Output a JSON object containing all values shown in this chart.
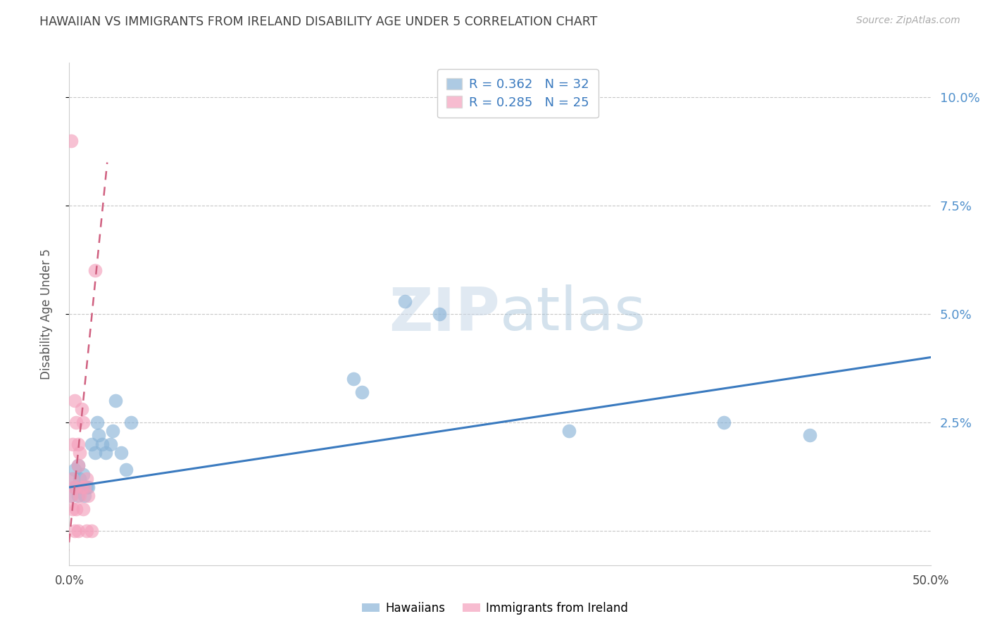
{
  "title": "HAWAIIAN VS IMMIGRANTS FROM IRELAND DISABILITY AGE UNDER 5 CORRELATION CHART",
  "source": "Source: ZipAtlas.com",
  "ylabel": "Disability Age Under 5",
  "watermark": "ZIPatlas",
  "xlim": [
    0.0,
    0.5
  ],
  "ylim": [
    -0.008,
    0.108
  ],
  "yticks": [
    0.0,
    0.025,
    0.05,
    0.075,
    0.1
  ],
  "ytick_labels": [
    "",
    "2.5%",
    "5.0%",
    "7.5%",
    "10.0%"
  ],
  "hawaiian_scatter_x": [
    0.001,
    0.002,
    0.003,
    0.003,
    0.004,
    0.005,
    0.005,
    0.006,
    0.007,
    0.008,
    0.009,
    0.01,
    0.011,
    0.013,
    0.015,
    0.016,
    0.017,
    0.019,
    0.021,
    0.024,
    0.025,
    0.027,
    0.03,
    0.033,
    0.036,
    0.195,
    0.215,
    0.38,
    0.43,
    0.165,
    0.17,
    0.29
  ],
  "hawaiian_scatter_y": [
    0.008,
    0.012,
    0.01,
    0.014,
    0.01,
    0.015,
    0.008,
    0.012,
    0.01,
    0.013,
    0.008,
    0.01,
    0.01,
    0.02,
    0.018,
    0.025,
    0.022,
    0.02,
    0.018,
    0.02,
    0.023,
    0.03,
    0.018,
    0.014,
    0.025,
    0.053,
    0.05,
    0.025,
    0.022,
    0.035,
    0.032,
    0.023
  ],
  "ireland_scatter_x": [
    0.001,
    0.001,
    0.002,
    0.002,
    0.002,
    0.003,
    0.003,
    0.003,
    0.004,
    0.004,
    0.005,
    0.005,
    0.005,
    0.006,
    0.006,
    0.007,
    0.007,
    0.008,
    0.008,
    0.009,
    0.01,
    0.01,
    0.011,
    0.013,
    0.015
  ],
  "ireland_scatter_y": [
    0.09,
    0.008,
    0.02,
    0.012,
    0.005,
    0.03,
    0.01,
    0.0,
    0.025,
    0.005,
    0.02,
    0.015,
    0.0,
    0.018,
    0.008,
    0.028,
    0.01,
    0.025,
    0.005,
    0.01,
    0.012,
    0.0,
    0.008,
    0.0,
    0.06
  ],
  "hawaiian_line_x": [
    0.0,
    0.5
  ],
  "hawaiian_line_y": [
    0.01,
    0.04
  ],
  "ireland_line_x": [
    -0.002,
    0.022
  ],
  "ireland_line_y": [
    -0.01,
    0.085
  ],
  "scatter_size": 200,
  "hawaiian_color": "#8ab4d8",
  "ireland_color": "#f4a0bc",
  "hawaii_line_color": "#3a7abf",
  "ireland_line_color": "#d06080",
  "background_color": "#ffffff",
  "grid_color": "#c8c8c8",
  "axis_color": "#cccccc",
  "title_color": "#404040",
  "right_axis_color": "#5090cc",
  "legend_text_color": "#3a7abf",
  "source_color": "#aaaaaa",
  "legend_r_color": "#333333",
  "legend_n_color": "#e05060"
}
